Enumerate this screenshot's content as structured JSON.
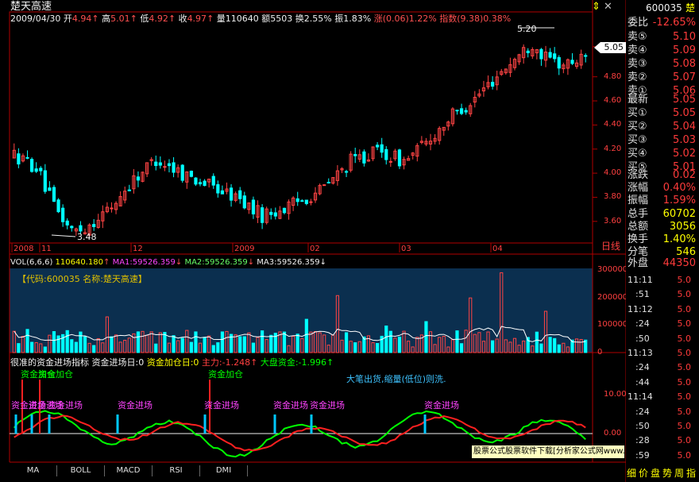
{
  "title_bar": {
    "stock_name": "楚天高速",
    "date": "2009/04/30"
  },
  "quote": {
    "open_label": "开",
    "open": "4.94",
    "high_label": "高",
    "high": "5.01",
    "low_label": "低",
    "low": "4.92",
    "close_label": "收",
    "close": "4.97",
    "vol_label": "量",
    "vol": "110640",
    "amt_label": "额",
    "amt": "5503",
    "turn_label": "换",
    "turn": "2.55%",
    "amp_label": "振",
    "amp": "1.83%",
    "chg_label": "涨",
    "chg": "(0.06)1.22%",
    "idx_label": "指数",
    "idx": "(9.38)0.38%"
  },
  "price_axis": [
    "4.80",
    "4.60",
    "4.40",
    "4.20",
    "4.00",
    "3.80",
    "3.60"
  ],
  "price_marker": "5.05",
  "price_annotations": {
    "high": "5.20",
    "low": "3.48"
  },
  "date_axis": [
    "2008",
    "11",
    "12",
    "2009",
    "02",
    "03",
    "04"
  ],
  "vol_panel": {
    "header": "VOL(6,6,6)",
    "vol": "110640.180",
    "ma1": "MA1:59526.359",
    "ma2": "MA2:59526.359",
    "ma3": "MA3:59526.359",
    "info": "【代码:600035 名称:楚天高速】",
    "axis": [
      "300000",
      "200000",
      "100000",
      "0"
    ]
  },
  "fund_panel": {
    "name": "很准的资金进场指标",
    "in_day": "资金进场日:0",
    "add_day": "资金加仓日:0",
    "main": "主力:-1.248",
    "big": "大盘资金:-1.996",
    "note": "大笔出货,缩量(低位)则洗.",
    "label_add": "资金加仓",
    "label_in": "资金进场",
    "axis": [
      "10.00",
      "0.00"
    ]
  },
  "bottom_tabs": [
    "MA",
    "BOLL",
    "MACD",
    "RSI",
    "DMI"
  ],
  "banner": "股票公式股票软件下载[分析家公式网www.88gs.com]",
  "right_panel": {
    "top_icons": [
      "⇕",
      "✕"
    ],
    "code": "600035",
    "name": "楚",
    "weibi_label": "委比",
    "weibi": "-12.65%",
    "sells": [
      {
        "label": "卖⑤",
        "price": "5.10"
      },
      {
        "label": "卖④",
        "price": "5.09"
      },
      {
        "label": "卖③",
        "price": "5.08"
      },
      {
        "label": "卖②",
        "price": "5.07"
      },
      {
        "label": "卖①",
        "price": "5.06"
      }
    ],
    "last_label": "最新",
    "last": "5.05",
    "buys": [
      {
        "label": "买①",
        "price": "5.05"
      },
      {
        "label": "买②",
        "price": "5.04"
      },
      {
        "label": "买③",
        "price": "5.03"
      },
      {
        "label": "买④",
        "price": "5.02"
      },
      {
        "label": "买⑤",
        "price": "5.01"
      }
    ],
    "stats": [
      {
        "label": "涨跌",
        "value": "0.02"
      },
      {
        "label": "涨幅",
        "value": "0.40%"
      },
      {
        "label": "振幅",
        "value": "1.59%"
      },
      {
        "label": "总手",
        "value": "60702"
      },
      {
        "label": "总额",
        "value": "3056"
      },
      {
        "label": "换手",
        "value": "1.40%"
      },
      {
        "label": "分笔",
        "value": "546"
      }
    ],
    "daily_tab": "日线",
    "outer_label": "外盘",
    "outer": "44350",
    "ticks": [
      {
        "time": "11:11",
        "price": "5.0"
      },
      {
        "time": ":51",
        "price": "5.0"
      },
      {
        "time": "11:12",
        "price": "5.0"
      },
      {
        "time": ":24",
        "price": "5.0"
      },
      {
        "time": ":50",
        "price": "5.0"
      },
      {
        "time": "11:13",
        "price": "5.0"
      },
      {
        "time": ":24",
        "price": "5.0"
      },
      {
        "time": ":44",
        "price": "5.0"
      },
      {
        "time": "11:14",
        "price": "5.0"
      },
      {
        "time": ":24",
        "price": "5.0"
      },
      {
        "time": ":50",
        "price": "5.0"
      },
      {
        "time": ":28",
        "price": "5.0"
      },
      {
        "time": ":59",
        "price": "5.0"
      }
    ],
    "bottom_tabs": [
      "细",
      "价",
      "盘",
      "势",
      "周",
      "指"
    ]
  },
  "chart_data": {
    "type": "candlestick",
    "start_date": "2008-10",
    "end_date": "2009-04-30",
    "price_range": [
      3.48,
      5.2
    ],
    "last_close": 4.97
  }
}
